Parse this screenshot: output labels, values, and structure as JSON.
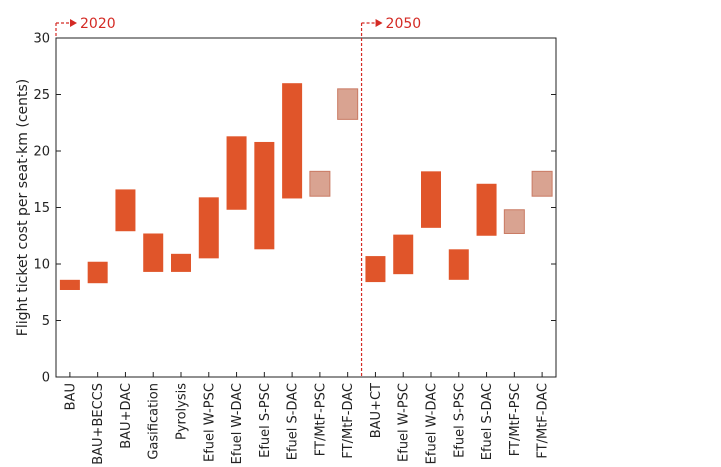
{
  "chart_data": {
    "type": "bar",
    "ylabel": "Flight ticket cost per seat·km (cents)",
    "ylim": [
      0,
      30
    ],
    "yticks": [
      0,
      5,
      10,
      15,
      20,
      25,
      30
    ],
    "grid": false,
    "colors": {
      "solid": "#e0552a",
      "light": "#d9a391",
      "marker": "#d42a24",
      "axis": "#222222"
    },
    "periods": [
      {
        "label": "2020",
        "start_index": 0
      },
      {
        "label": "2050",
        "start_index": 11
      }
    ],
    "categories": [
      "BAU",
      "BAU+BECCS",
      "BAU+DAC",
      "Gasification",
      "Pyrolysis",
      "Efuel W-PSC",
      "Efuel W-DAC",
      "Efuel S-PSC",
      "Efuel S-DAC",
      "FT/MtF-PSC",
      "FT/MtF-DAC",
      "BAU+CT",
      "Efuel W-PSC",
      "Efuel W-DAC",
      "Efuel S-PSC",
      "Efuel S-DAC",
      "FT/MtF-PSC",
      "FT/MtF-DAC"
    ],
    "series": [
      {
        "ranges": [
          [
            7.7,
            8.6
          ],
          [
            8.3,
            10.2
          ],
          [
            12.9,
            16.6
          ],
          [
            9.3,
            12.7
          ],
          [
            9.3,
            10.9
          ],
          [
            10.5,
            15.9
          ],
          [
            14.8,
            21.3
          ],
          [
            11.3,
            20.8
          ],
          [
            15.8,
            26.0
          ],
          [
            16.0,
            18.2
          ],
          [
            22.8,
            25.5
          ],
          [
            8.4,
            10.7
          ],
          [
            9.1,
            12.6
          ],
          [
            13.2,
            18.2
          ],
          [
            8.6,
            11.3
          ],
          [
            12.5,
            17.1
          ],
          [
            12.7,
            14.8
          ],
          [
            16.0,
            18.2
          ]
        ],
        "styles": [
          "solid",
          "solid",
          "solid",
          "solid",
          "solid",
          "solid",
          "solid",
          "solid",
          "solid",
          "light",
          "light",
          "solid",
          "solid",
          "solid",
          "solid",
          "solid",
          "light",
          "light"
        ]
      }
    ]
  }
}
